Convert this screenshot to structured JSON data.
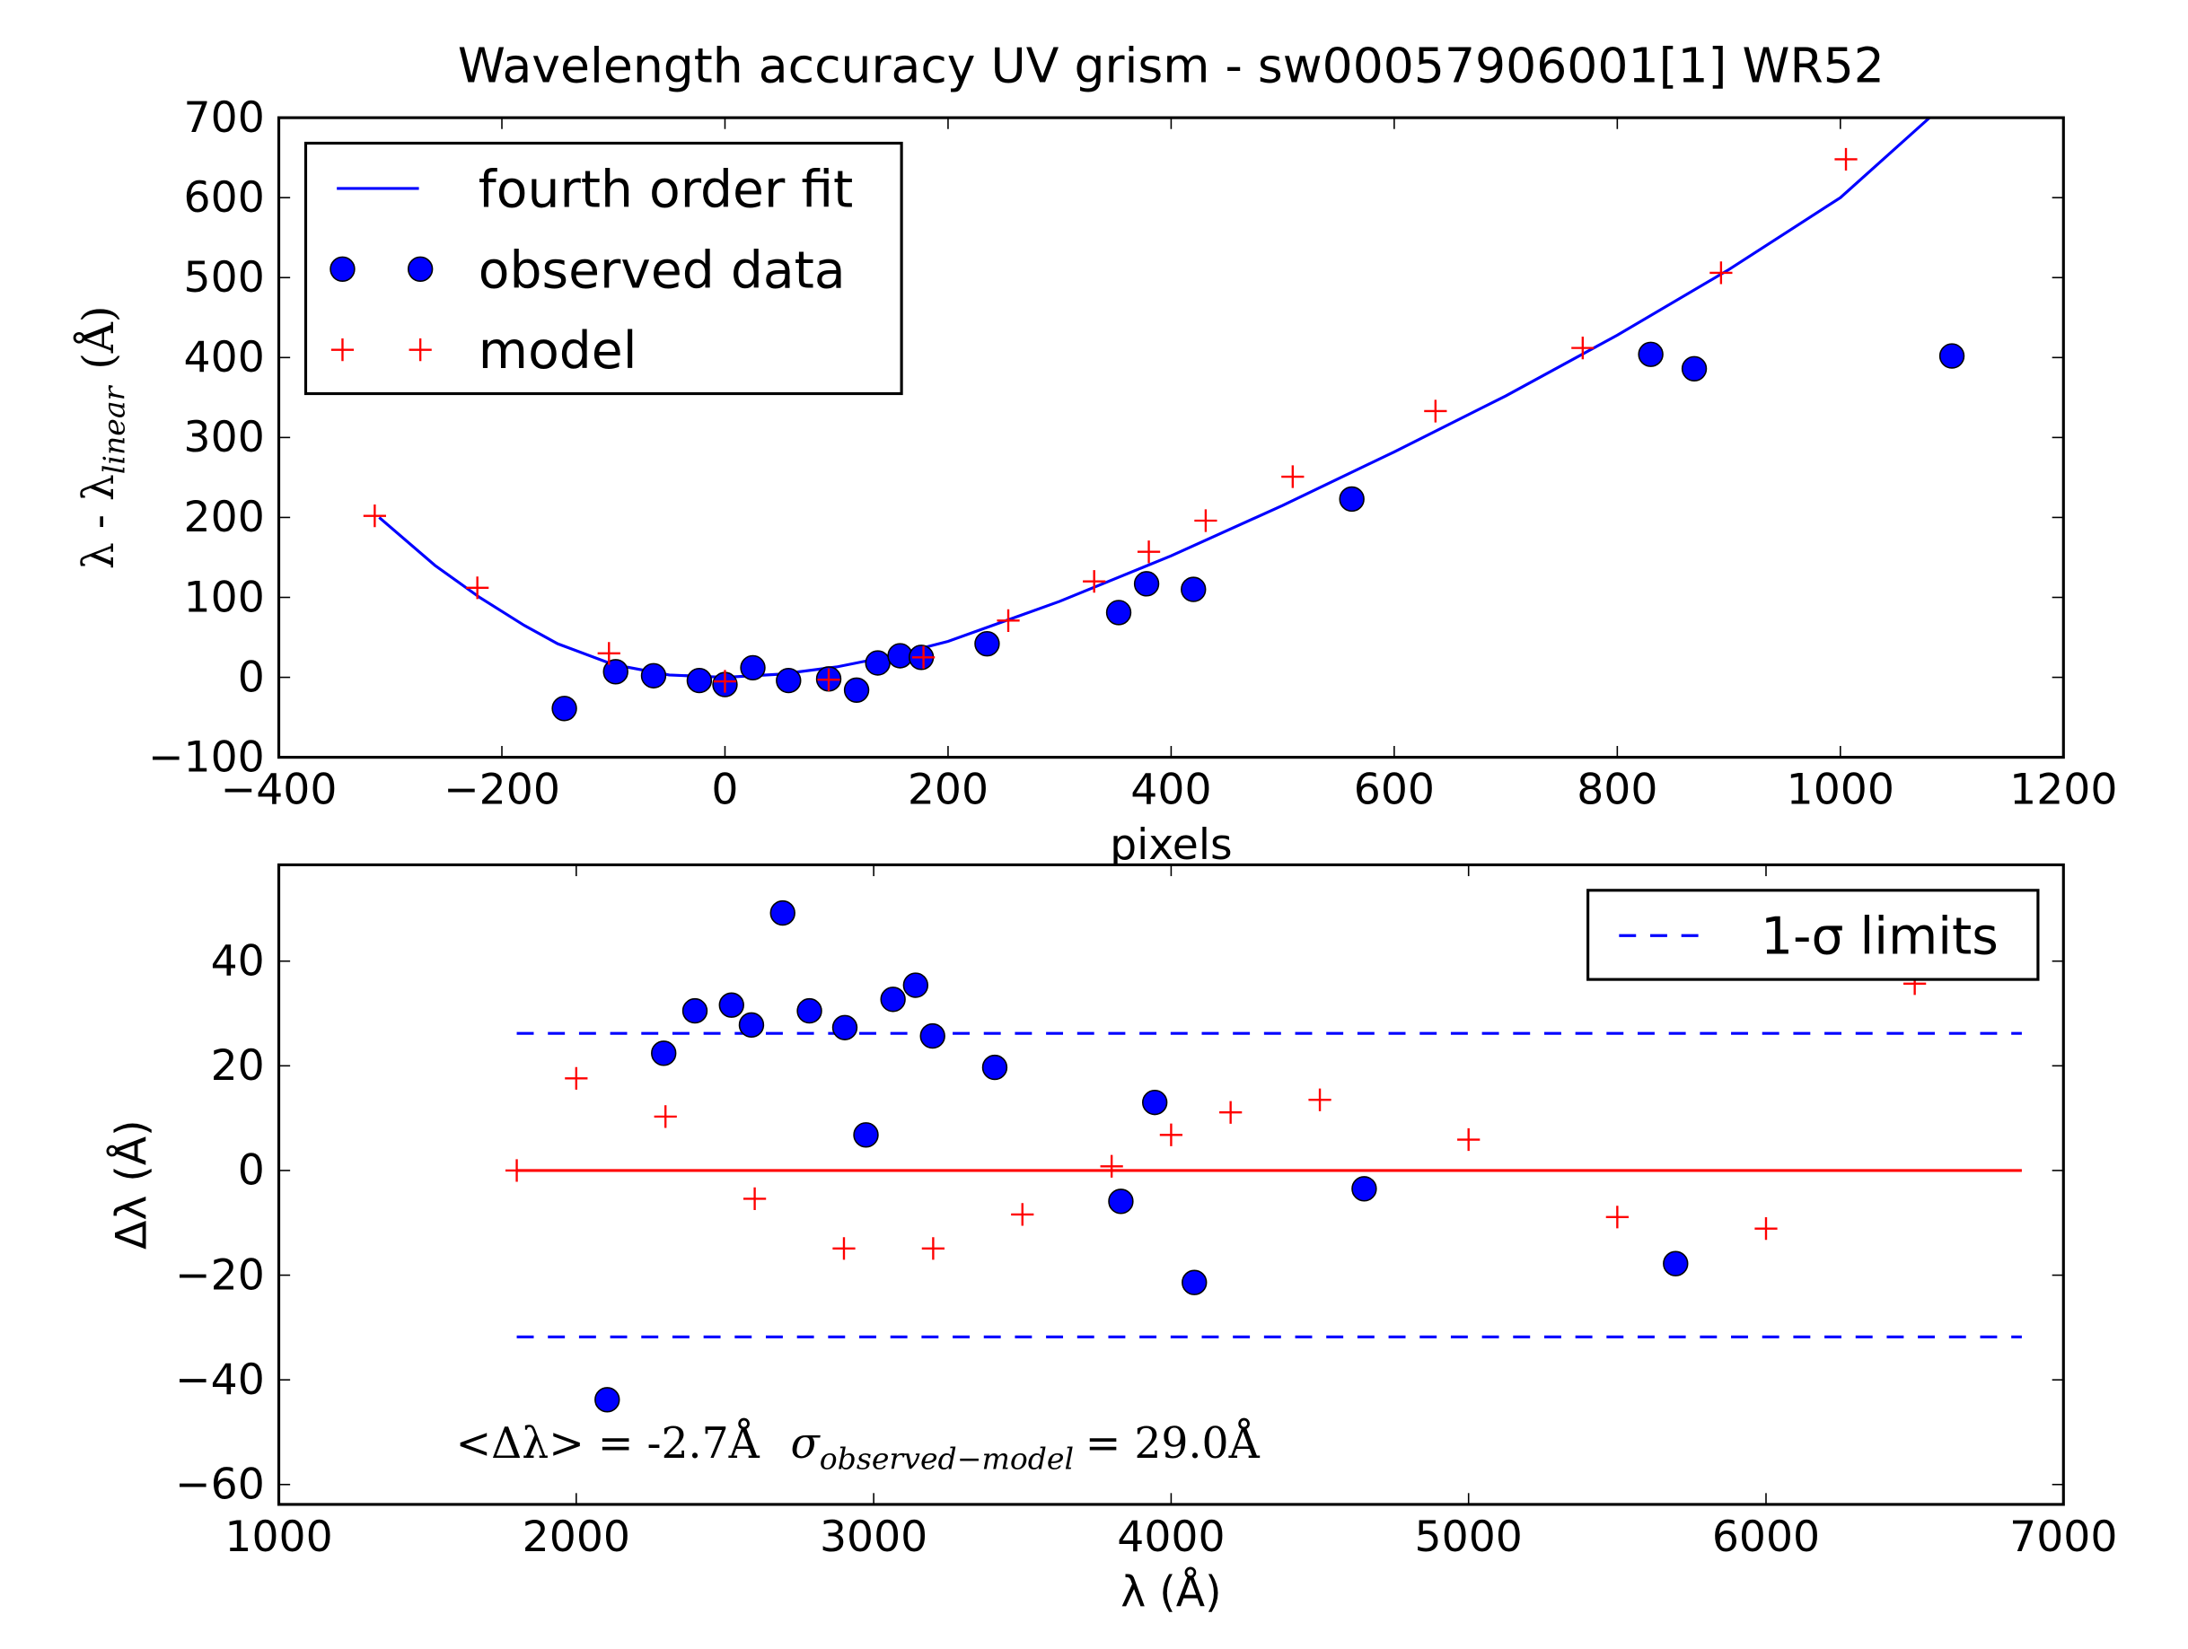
{
  "chart_data": [
    {
      "type": "scatter",
      "title": "Wavelength accuracy UV grism - sw00057906001[1] WR52",
      "xlabel": "pixels",
      "ylabel": {
        "text": "λ - λ",
        "subscript": "linear",
        "unit": "(Å)"
      },
      "xlim": [
        -400,
        1200
      ],
      "ylim": [
        -100,
        700
      ],
      "xticks": [
        {
          "value": -400,
          "label": "−400"
        },
        {
          "value": -200,
          "label": "−200"
        },
        0,
        200,
        400,
        600,
        800,
        1000,
        1200
      ],
      "yticks": [
        {
          "value": -100,
          "label": "−100"
        },
        0,
        100,
        200,
        300,
        400,
        500,
        600,
        700
      ],
      "legend": "upper left",
      "series": [
        {
          "name": "fourth order fit",
          "type": "line",
          "color": "#0000ff",
          "x": [
            -310,
            -260,
            -220,
            -180,
            -150,
            -100,
            -50,
            0,
            50,
            100,
            150,
            200,
            300,
            400,
            500,
            600,
            700,
            800,
            900,
            1000,
            1080
          ],
          "values": [
            200,
            140,
            100,
            65,
            42,
            16,
            3,
            0,
            4,
            13,
            27,
            45,
            95,
            152,
            215,
            282,
            352,
            428,
            510,
            600,
            700
          ]
        },
        {
          "name": "observed data",
          "type": "scatter",
          "marker": "o",
          "color": "#0000ff",
          "x": [
            -144,
            -98,
            -64,
            -23,
            0,
            25,
            57,
            93,
            118,
            137,
            157,
            176,
            235,
            353,
            378,
            420,
            562,
            830,
            869,
            1100
          ],
          "values": [
            -39,
            7,
            2,
            -4,
            -9,
            12,
            -4,
            -2,
            -16,
            18,
            27,
            25,
            42,
            81,
            117,
            110,
            223,
            404,
            386,
            402
          ]
        },
        {
          "name": "model",
          "type": "scatter",
          "marker": "+",
          "color": "#ff0000",
          "x": [
            -314,
            -222,
            -104,
            0,
            93,
            178,
            254,
            331,
            380,
            431,
            509,
            637,
            769,
            893,
            1005
          ],
          "values": [
            202,
            112,
            30,
            -5,
            -3,
            25,
            71,
            120,
            157,
            196,
            251,
            333,
            412,
            506,
            648
          ]
        }
      ]
    },
    {
      "type": "scatter",
      "xlabel": "λ (Å)",
      "ylabel": "Δλ (Å)",
      "xlim": [
        1000,
        7000
      ],
      "ylim": [
        -63.8,
        58.4
      ],
      "xticks": [
        1000,
        2000,
        3000,
        4000,
        5000,
        6000,
        7000
      ],
      "yticks": [
        {
          "value": -60,
          "label": "−60"
        },
        {
          "value": -40,
          "label": "−40"
        },
        {
          "value": -20,
          "label": "−20"
        },
        0,
        20,
        40
      ],
      "legend": "upper right",
      "annotation": {
        "mean": "<Δλ> = -2.7Å",
        "sigma_symbol": "σ",
        "sigma_subscript": "observed−model",
        "sigma_value": "= 29.0Å"
      },
      "series": [
        {
          "type": "scatter",
          "marker": "o",
          "color": "#0000ff",
          "x": [
            2104,
            2294,
            2399,
            2522,
            2589,
            2694,
            2784,
            2903,
            2974,
            3065,
            3141,
            3198,
            3407,
            3831,
            3945,
            4078,
            4649,
            5696
          ],
          "values": [
            -43.8,
            22.4,
            30.5,
            31.6,
            27.8,
            49.2,
            30.5,
            27.3,
            6.8,
            32.7,
            35.4,
            25.7,
            19.7,
            -5.9,
            13.0,
            -21.4,
            -3.5,
            -17.8
          ]
        },
        {
          "type": "scatter",
          "marker": "+",
          "color": "#ff0000",
          "x": [
            1800,
            2000,
            2300,
            2600,
            2900,
            3200,
            3500,
            3800,
            4000,
            4200,
            4500,
            5000,
            5500,
            6000,
            6500
          ],
          "values": [
            0,
            17.6,
            10.3,
            -5.4,
            -14.9,
            -14.9,
            -8.4,
            0.8,
            6.8,
            11.1,
            13.5,
            5.9,
            -8.9,
            -11.1,
            35.7
          ]
        },
        {
          "type": "line",
          "color": "#ff0000",
          "x": [
            1800,
            6860
          ],
          "values": [
            0,
            0
          ]
        },
        {
          "name": "1-σ limits",
          "type": "line",
          "dash": true,
          "color": "#0000ff",
          "x": [
            1800,
            6860
          ],
          "values": [
            26.2,
            26.2
          ]
        },
        {
          "type": "line",
          "dash": true,
          "color": "#0000ff",
          "x": [
            1800,
            6860
          ],
          "values": [
            -31.8,
            -31.8
          ]
        }
      ]
    }
  ]
}
